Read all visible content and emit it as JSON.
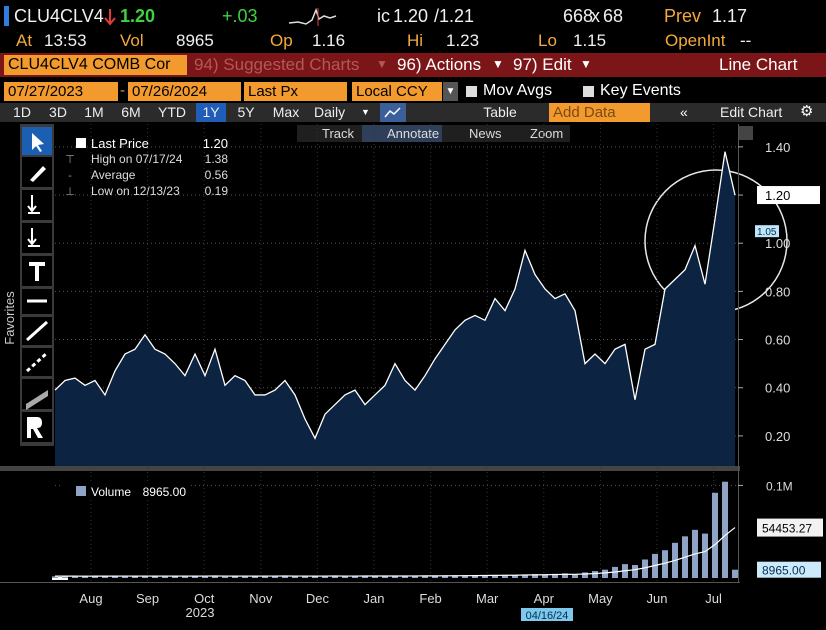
{
  "quote": {
    "ticker": "CLU4CLV4",
    "last": "1.20",
    "change": "+.03",
    "bid_prefix": "ic",
    "bid": "1.20",
    "ask": "/1.21",
    "bid_size": "668",
    "size_sep": "x",
    "ask_size": "68",
    "prev_label": "Prev",
    "prev": "1.17"
  },
  "stats": [
    {
      "label": "At",
      "value": "13:53"
    },
    {
      "label": "Vol",
      "value": "8965"
    },
    {
      "label": "Op",
      "value": "1.16"
    },
    {
      "label": "Hi",
      "value": "1.23"
    },
    {
      "label": "Lo",
      "value": "1.15"
    },
    {
      "label": "OpenInt",
      "value": "--"
    }
  ],
  "menu": {
    "security": "CLU4CLV4 COMB Cor",
    "items": [
      "94) Suggested Charts",
      "96) Actions",
      "97) Edit"
    ],
    "chart_type": "Line Chart"
  },
  "controls": {
    "start": "07/27/2023",
    "dash": "-",
    "end": "07/26/2024",
    "field": "Last Px",
    "currency": "Local CCY",
    "mov_avgs": "Mov Avgs",
    "key_events": "Key Events"
  },
  "periods": [
    "1D",
    "3D",
    "1M",
    "6M",
    "YTD",
    "1Y",
    "5Y",
    "Max"
  ],
  "selected_period": "1Y",
  "frequency": "Daily",
  "table": "Table",
  "add_data": "Add Data",
  "edit_chart": "Edit Chart",
  "chart_tools": [
    "Track",
    "Annotate",
    "News",
    "Zoom"
  ],
  "side_label": "Favorites",
  "chart_data": {
    "type": "area",
    "series": [
      {
        "name": "Last Price",
        "color": "#ffffff",
        "fill": "#0c2341",
        "value_label": "1.20",
        "values": [
          0.39,
          0.43,
          0.44,
          0.41,
          0.43,
          0.37,
          0.47,
          0.54,
          0.56,
          0.62,
          0.56,
          0.54,
          0.5,
          0.45,
          0.54,
          0.45,
          0.56,
          0.41,
          0.45,
          0.43,
          0.37,
          0.37,
          0.39,
          0.43,
          0.37,
          0.27,
          0.19,
          0.29,
          0.33,
          0.37,
          0.39,
          0.33,
          0.37,
          0.41,
          0.5,
          0.43,
          0.39,
          0.45,
          0.52,
          0.58,
          0.64,
          0.68,
          0.7,
          0.68,
          0.77,
          0.72,
          0.81,
          0.97,
          0.87,
          0.81,
          0.77,
          0.79,
          0.72,
          0.5,
          0.54,
          0.5,
          0.56,
          0.58,
          0.35,
          0.56,
          0.58,
          0.81,
          0.85,
          0.89,
          0.99,
          0.83,
          1.1,
          1.38,
          1.2
        ]
      }
    ],
    "legend": [
      {
        "label": "High on 07/17/24",
        "value": "1.38"
      },
      {
        "label": "Average",
        "value": "0.56"
      },
      {
        "label": "Low on 12/13/23",
        "value": "0.19"
      }
    ],
    "ylim": [
      0.075,
      1.495
    ],
    "yticks": [
      {
        "value": 0.2,
        "label": "0.20"
      },
      {
        "value": 0.4,
        "label": "0.40"
      },
      {
        "value": 0.6,
        "label": "0.60"
      },
      {
        "value": 0.8,
        "label": "0.80"
      },
      {
        "value": 1.0,
        "label": "1.00"
      },
      {
        "value": 1.2,
        "label": "1.20"
      },
      {
        "value": 1.4,
        "label": "1.40"
      }
    ],
    "grid": true,
    "last_price": {
      "value": 1.2,
      "label": "1.20"
    },
    "ma_label": {
      "value": 1.05,
      "label": "1.05"
    },
    "x_labels": [
      "Aug",
      "Sep",
      "Oct",
      "Nov",
      "Dec",
      "Jan",
      "Feb",
      "Mar",
      "Apr",
      "May",
      "Jun",
      "Jul"
    ],
    "year_label": "2023",
    "cursor_date": "04/16/24",
    "volume": {
      "name": "Volume",
      "legend_value": "8965.00",
      "color": "#8fa3c6",
      "ma_color": "#ffffff",
      "values": [
        1800,
        2200,
        1500,
        2600,
        1900,
        2100,
        1700,
        2400,
        2000,
        2300,
        1600,
        2500,
        1900,
        2200,
        1800,
        2700,
        2100,
        1500,
        2300,
        2000,
        1900,
        2400,
        1700,
        2600,
        2000,
        2200,
        1800,
        2500,
        2100,
        1900,
        2300,
        2000,
        2600,
        1800,
        2400,
        2200,
        2700,
        2100,
        2500,
        2900,
        2400,
        3000,
        2600,
        3200,
        2800,
        3500,
        3000,
        3800,
        4200,
        3600,
        4500,
        5000,
        4200,
        6000,
        7500,
        9000,
        12000,
        15000,
        14000,
        20000,
        26000,
        30000,
        38000,
        45000,
        52000,
        48000,
        92000,
        104000,
        8965
      ],
      "ma_values": [
        2000,
        2050,
        2000,
        1950,
        2000,
        2050,
        2000,
        2100,
        2050,
        2100,
        2050,
        2100,
        2050,
        2100,
        2050,
        2100,
        2150,
        2100,
        2050,
        2100,
        2050,
        2100,
        2100,
        2150,
        2100,
        2100,
        2050,
        2100,
        2150,
        2100,
        2100,
        2150,
        2200,
        2150,
        2200,
        2200,
        2250,
        2300,
        2300,
        2350,
        2400,
        2500,
        2600,
        2700,
        2800,
        2900,
        3000,
        3200,
        3400,
        3500,
        3700,
        3900,
        4000,
        4300,
        4800,
        5500,
        6500,
        7800,
        9000,
        11000,
        13500,
        16000,
        19000,
        22500,
        26000,
        28500,
        36000,
        46000,
        54453.27
      ],
      "ylim": [
        0,
        108000
      ],
      "yticks": [
        {
          "value": 100000,
          "label": "0.1M"
        }
      ],
      "ma_last": {
        "value": 54453.27,
        "label": "54453.27"
      },
      "last": {
        "value": 8965,
        "label": "8965.00"
      }
    }
  }
}
